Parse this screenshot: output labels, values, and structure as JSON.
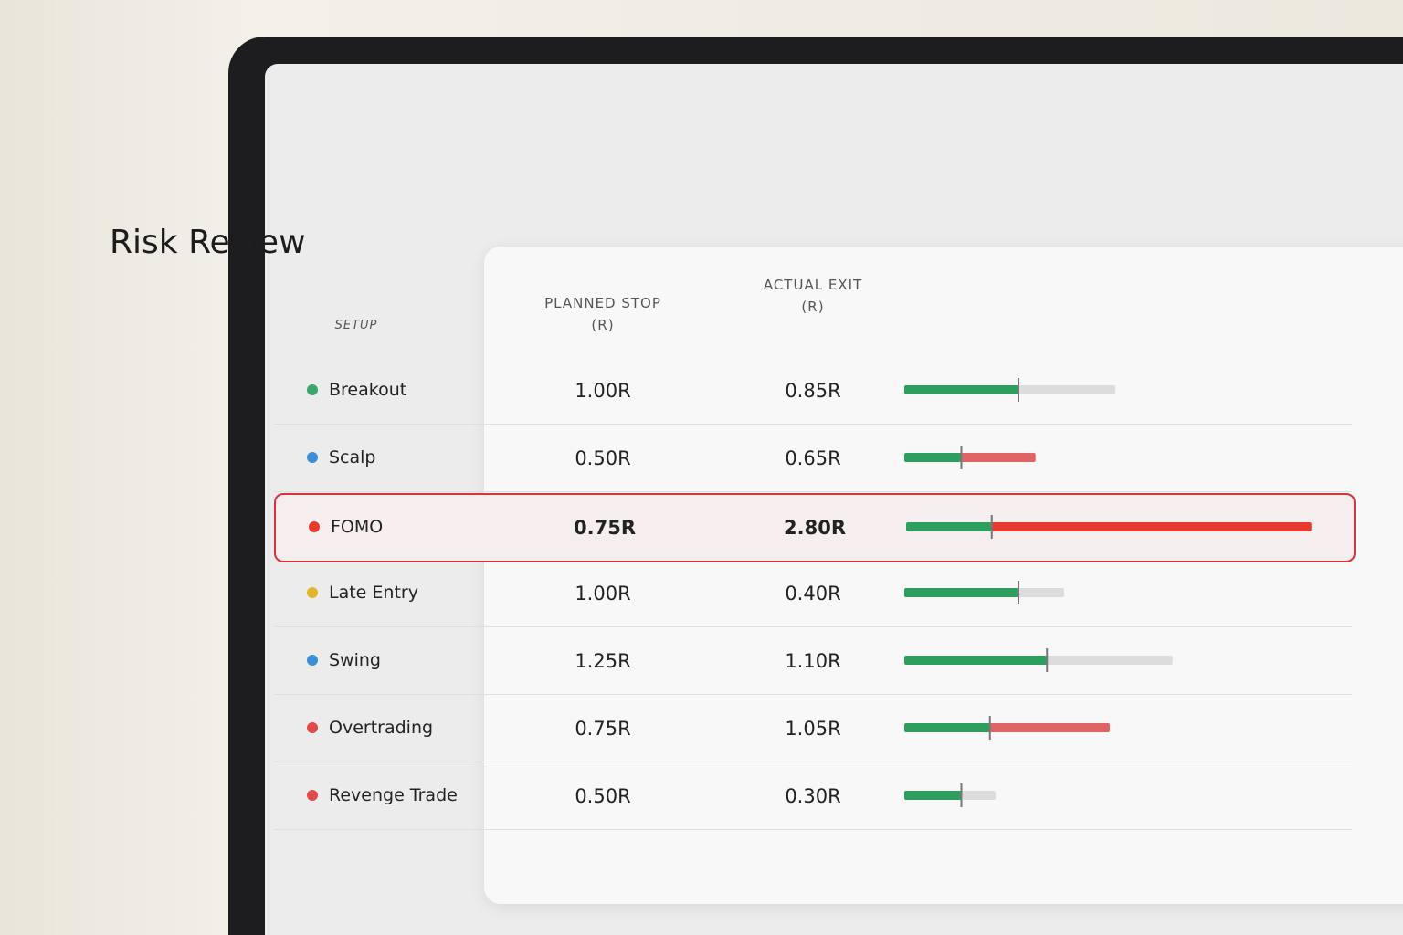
{
  "title": "Risk Review",
  "table": {
    "headers": {
      "setup": "SETUP",
      "planned": [
        "PLANNED STOP",
        "(R)"
      ],
      "actual": [
        "ACTUAL EXIT",
        "(R)"
      ]
    },
    "rows": [
      {
        "setup": "Breakout",
        "color": "#3aa66b",
        "planned": 1.0,
        "planned_label": "1.00R",
        "actual": 0.85,
        "actual_label": "0.85R"
      },
      {
        "setup": "Scalp",
        "color": "#3b8fd6",
        "planned": 0.5,
        "planned_label": "0.50R",
        "actual": 0.65,
        "actual_label": "0.65R"
      },
      {
        "setup": "FOMO",
        "color": "#e8392f",
        "planned": 0.75,
        "planned_label": "0.75R",
        "actual": 2.8,
        "actual_label": "2.80R",
        "highlighted": true
      },
      {
        "setup": "Late Entry",
        "color": "#e3b52a",
        "planned": 1.0,
        "planned_label": "1.00R",
        "actual": 0.4,
        "actual_label": "0.40R"
      },
      {
        "setup": "Swing",
        "color": "#3b8fd6",
        "planned": 1.25,
        "planned_label": "1.25R",
        "actual": 1.1,
        "actual_label": "1.10R"
      },
      {
        "setup": "Overtrading",
        "color": "#e24a4a",
        "planned": 0.75,
        "planned_label": "0.75R",
        "actual": 1.05,
        "actual_label": "1.05R"
      },
      {
        "setup": "Revenge Trade",
        "color": "#e24a4a",
        "planned": 0.5,
        "planned_label": "0.50R",
        "actual": 0.3,
        "actual_label": "0.30R"
      }
    ]
  }
}
